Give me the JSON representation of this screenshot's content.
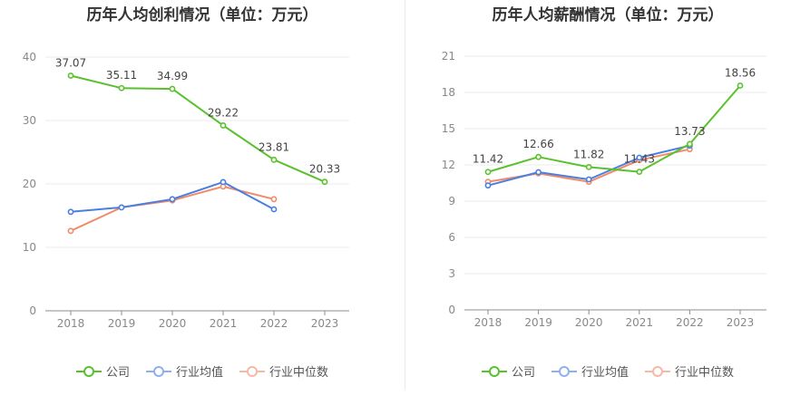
{
  "colors": {
    "company": "#5ac12d",
    "industry_avg": "#4a7fe0",
    "industry_median": "#f08a6a",
    "grid": "#ebebeb",
    "axis": "#8c8c8c",
    "text": "#666666"
  },
  "chart_data": [
    {
      "type": "line",
      "title": "历年人均创利情况（单位：万元）",
      "categories": [
        "2018",
        "2019",
        "2020",
        "2021",
        "2022",
        "2023"
      ],
      "ylim": [
        0,
        40
      ],
      "yticks": [
        0,
        10,
        20,
        30,
        40
      ],
      "series": [
        {
          "name": "公司",
          "key": "company",
          "values": [
            37.07,
            35.11,
            34.99,
            29.22,
            23.81,
            20.33
          ],
          "labels": [
            "37.07",
            "35.11",
            "34.99",
            "29.22",
            "23.81",
            "20.33"
          ]
        },
        {
          "name": "行业均值",
          "key": "industry_avg",
          "values": [
            15.6,
            16.3,
            17.6,
            20.3,
            16.0,
            null
          ]
        },
        {
          "name": "行业中位数",
          "key": "industry_median",
          "values": [
            12.6,
            16.3,
            17.4,
            19.6,
            17.6,
            null
          ]
        }
      ]
    },
    {
      "type": "line",
      "title": "历年人均薪酬情况（单位：万元）",
      "categories": [
        "2018",
        "2019",
        "2020",
        "2021",
        "2022",
        "2023"
      ],
      "ylim": [
        0,
        21
      ],
      "yticks": [
        0,
        3,
        6,
        9,
        12,
        15,
        18,
        21
      ],
      "series": [
        {
          "name": "公司",
          "key": "company",
          "values": [
            11.42,
            12.66,
            11.82,
            11.43,
            13.73,
            18.56
          ],
          "labels": [
            "11.42",
            "12.66",
            "11.82",
            "11.43",
            "13.73",
            "18.56"
          ]
        },
        {
          "name": "行业均值",
          "key": "industry_avg",
          "values": [
            10.3,
            11.4,
            10.8,
            12.6,
            13.6,
            null
          ]
        },
        {
          "name": "行业中位数",
          "key": "industry_median",
          "values": [
            10.6,
            11.3,
            10.6,
            12.4,
            13.3,
            null
          ]
        }
      ]
    }
  ],
  "legend": [
    "公司",
    "行业均值",
    "行业中位数"
  ]
}
